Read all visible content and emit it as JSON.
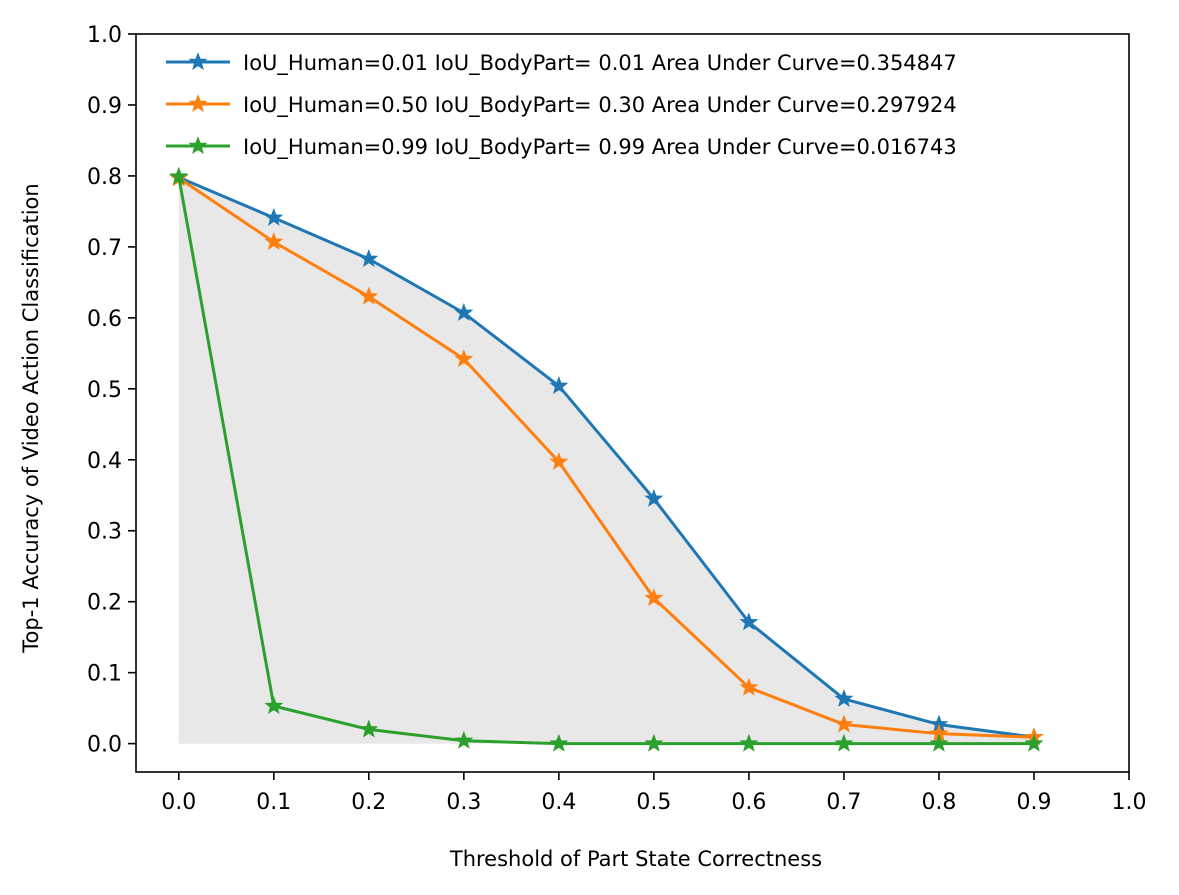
{
  "chart_data": {
    "type": "line",
    "title": "",
    "xlabel": "Threshold of Part State Correctness",
    "ylabel": "Top-1 Accuracy of Video Action Classification",
    "xlim": [
      -0.045,
      1.0
    ],
    "ylim": [
      -0.04,
      1.0
    ],
    "xticks": [
      "0.0",
      "0.1",
      "0.2",
      "0.3",
      "0.4",
      "0.5",
      "0.6",
      "0.7",
      "0.8",
      "0.9",
      "1.0"
    ],
    "yticks": [
      "0.0",
      "0.1",
      "0.2",
      "0.3",
      "0.4",
      "0.5",
      "0.6",
      "0.7",
      "0.8",
      "0.9",
      "1.0"
    ],
    "grid": false,
    "legend_position": "top",
    "x": [
      0.0,
      0.1,
      0.2,
      0.3,
      0.4,
      0.5,
      0.6,
      0.7,
      0.8,
      0.9
    ],
    "series": [
      {
        "name": "IoU_Human=0.01  IoU_BodyPart= 0.01  Area Under Curve=0.354847",
        "color": "#1f77b4",
        "marker": "star",
        "values": [
          0.798,
          0.741,
          0.683,
          0.607,
          0.504,
          0.345,
          0.171,
          0.063,
          0.027,
          0.009
        ]
      },
      {
        "name": "IoU_Human=0.50  IoU_BodyPart= 0.30  Area Under Curve=0.297924",
        "color": "#ff7f0e",
        "marker": "star",
        "values": [
          0.797,
          0.707,
          0.63,
          0.542,
          0.397,
          0.205,
          0.079,
          0.027,
          0.014,
          0.009
        ]
      },
      {
        "name": "IoU_Human=0.99  IoU_BodyPart= 0.99  Area Under Curve=0.016743",
        "color": "#2ca02c",
        "marker": "star",
        "values": [
          0.799,
          0.053,
          0.02,
          0.004,
          0.0,
          0.0,
          0.0,
          0.0,
          0.0,
          0.0
        ]
      }
    ],
    "shaded_area": {
      "under_series": 0,
      "color": "#e8e8e8"
    }
  }
}
